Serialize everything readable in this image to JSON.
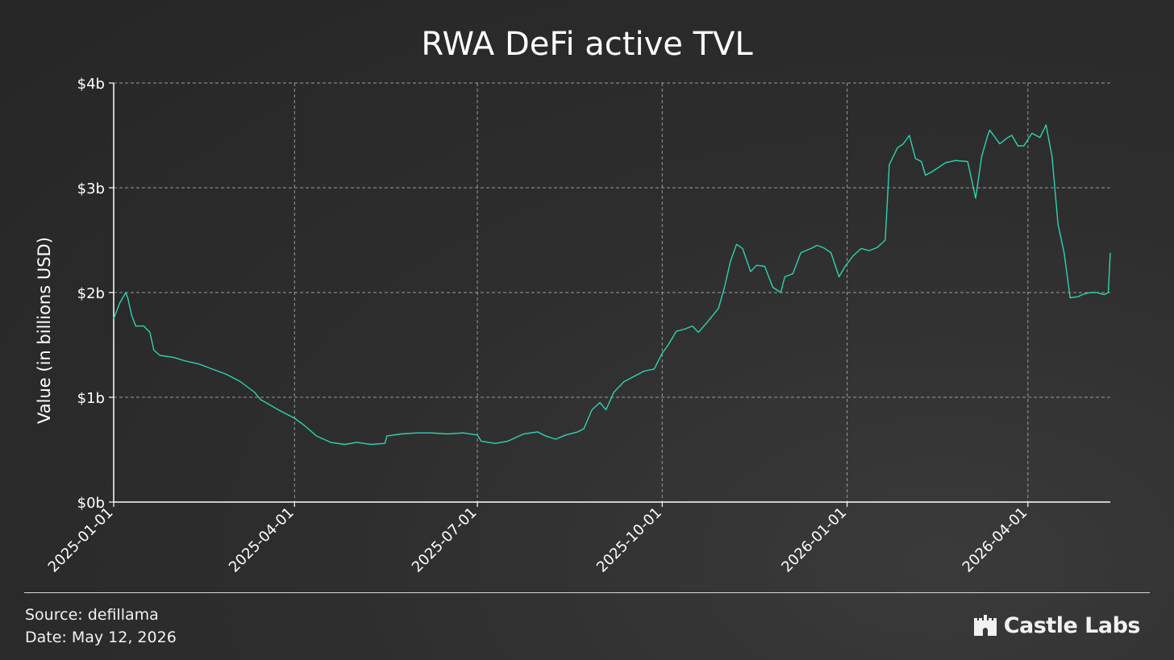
{
  "chart_data": {
    "type": "line",
    "title": "RWA DeFi active TVL",
    "ylabel": "Value (in billions USD)",
    "xlabel": "",
    "ylim": [
      0,
      4
    ],
    "y_ticks": [
      "$0b",
      "$1b",
      "$2b",
      "$3b",
      "$4b"
    ],
    "x_ticks": [
      "2025-01-01",
      "2025-04-01",
      "2025-07-01",
      "2025-10-01",
      "2026-01-01",
      "2026-04-01"
    ],
    "xlim": [
      "2025-01-01",
      "2026-05-12"
    ],
    "grid": true,
    "line_color": "#2ed3b0",
    "series": [
      {
        "x": [
          "2025-01-01",
          "2025-01-04",
          "2025-01-07",
          "2025-01-08",
          "2025-01-10",
          "2025-01-12",
          "2025-01-16",
          "2025-01-19",
          "2025-01-21",
          "2025-01-24",
          "2025-01-31",
          "2025-02-05",
          "2025-02-12",
          "2025-02-19",
          "2025-02-26",
          "2025-03-05",
          "2025-03-12",
          "2025-03-15",
          "2025-03-24",
          "2025-04-01",
          "2025-04-06",
          "2025-04-12",
          "2025-04-19",
          "2025-04-26",
          "2025-05-02",
          "2025-05-09",
          "2025-05-16",
          "2025-05-17",
          "2025-05-24",
          "2025-06-01",
          "2025-06-08",
          "2025-06-16",
          "2025-06-24",
          "2025-07-01",
          "2025-07-03",
          "2025-07-10",
          "2025-07-16",
          "2025-07-24",
          "2025-07-31",
          "2025-08-04",
          "2025-08-09",
          "2025-08-14",
          "2025-08-20",
          "2025-08-23",
          "2025-08-27",
          "2025-08-31",
          "2025-09-03",
          "2025-09-07",
          "2025-09-12",
          "2025-09-17",
          "2025-09-22",
          "2025-09-27",
          "2025-10-01",
          "2025-10-04",
          "2025-10-08",
          "2025-10-12",
          "2025-10-16",
          "2025-10-19",
          "2025-10-24",
          "2025-10-29",
          "2025-11-01",
          "2025-11-04",
          "2025-11-07",
          "2025-11-10",
          "2025-11-14",
          "2025-11-17",
          "2025-11-21",
          "2025-11-25",
          "2025-11-29",
          "2025-12-01",
          "2025-12-05",
          "2025-12-09",
          "2025-12-14",
          "2025-12-17",
          "2025-12-20",
          "2025-12-24",
          "2025-12-28",
          "2025-12-31",
          "2026-01-04",
          "2026-01-08",
          "2026-01-12",
          "2026-01-16",
          "2026-01-20",
          "2026-01-22",
          "2026-01-24",
          "2026-01-26",
          "2026-01-29",
          "2026-02-01",
          "2026-02-04",
          "2026-02-07",
          "2026-02-09",
          "2026-02-12",
          "2026-02-16",
          "2026-02-19",
          "2026-02-24",
          "2026-03-02",
          "2026-03-06",
          "2026-03-09",
          "2026-03-12",
          "2026-03-13",
          "2026-03-18",
          "2026-03-22",
          "2026-03-24",
          "2026-03-27",
          "2026-03-30",
          "2026-04-03",
          "2026-04-07",
          "2026-04-10",
          "2026-04-13",
          "2026-04-16",
          "2026-04-19",
          "2026-04-22",
          "2026-04-26",
          "2026-04-28",
          "2026-05-02",
          "2026-05-05",
          "2026-05-09",
          "2026-05-11",
          "2026-05-12"
        ],
        "y": [
          1.75,
          1.9,
          2.0,
          1.95,
          1.78,
          1.68,
          1.68,
          1.62,
          1.45,
          1.4,
          1.38,
          1.35,
          1.32,
          1.27,
          1.22,
          1.15,
          1.05,
          0.98,
          0.88,
          0.8,
          0.73,
          0.63,
          0.57,
          0.55,
          0.57,
          0.55,
          0.56,
          0.63,
          0.65,
          0.66,
          0.66,
          0.65,
          0.66,
          0.64,
          0.58,
          0.56,
          0.58,
          0.65,
          0.67,
          0.63,
          0.6,
          0.64,
          0.67,
          0.7,
          0.88,
          0.95,
          0.88,
          1.05,
          1.15,
          1.2,
          1.25,
          1.27,
          1.42,
          1.5,
          1.63,
          1.65,
          1.68,
          1.62,
          1.73,
          1.85,
          2.05,
          2.3,
          2.46,
          2.42,
          2.2,
          2.26,
          2.25,
          2.05,
          2.0,
          2.15,
          2.18,
          2.38,
          2.42,
          2.45,
          2.43,
          2.38,
          2.15,
          2.25,
          2.35,
          2.42,
          2.4,
          2.43,
          2.5,
          3.22,
          3.3,
          3.38,
          3.42,
          3.5,
          3.28,
          3.25,
          3.12,
          3.15,
          3.2,
          3.24,
          3.26,
          3.25,
          2.9,
          3.3,
          3.5,
          3.55,
          3.42,
          3.48,
          3.5,
          3.4,
          3.4,
          3.52,
          3.48,
          3.6,
          3.3,
          2.65,
          2.38,
          1.95,
          1.96,
          1.98,
          2.0,
          2.0,
          1.98,
          2.0,
          2.38
        ]
      }
    ]
  },
  "footer": {
    "source": "Source: defillama",
    "date": "Date: May 12, 2026",
    "brand": "Castle Labs",
    "brand_icon": "castle-icon"
  }
}
